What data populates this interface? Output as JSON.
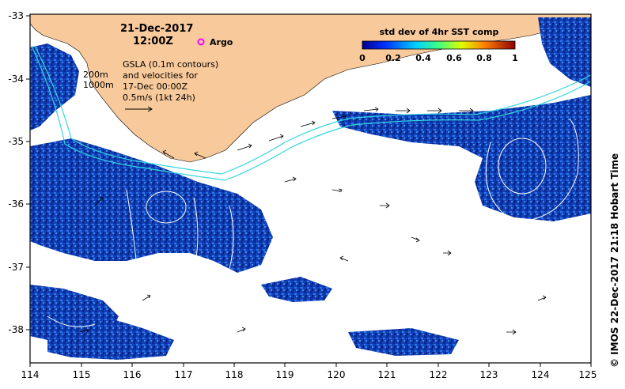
{
  "map": {
    "date_title": "21-Dec-2017",
    "time_title": "12:00Z",
    "argo_label": "Argo",
    "isobath_labels": [
      "200m",
      "1000m"
    ],
    "gsla_lines": [
      "GSLA (0.1m contours)",
      "and velocities for",
      "17-Dec 00:00Z",
      "0.5m/s (1kt 24h)"
    ],
    "colorbar": {
      "title": "std dev of 4hr SST comp",
      "tick_labels": [
        "0",
        "0.2",
        "0.4",
        "0.6",
        "0.8",
        "1"
      ],
      "range": [
        0,
        1
      ]
    },
    "credit": "© IMOS 22-Dec-2017 21:18 Hobart Time",
    "lon_ticks": [
      "114",
      "115",
      "116",
      "117",
      "118",
      "119",
      "120",
      "121",
      "122",
      "123",
      "124",
      "125"
    ],
    "lat_ticks": [
      "-33",
      "-34",
      "-35",
      "-36",
      "-37",
      "-38"
    ],
    "lon_range": [
      114,
      125
    ],
    "lat_range": [
      -38.5,
      -33
    ],
    "colors": {
      "land": "#f8c99a",
      "sst_low": "#0b2fa8",
      "sst_mid": "#1e6fe0",
      "contour": "#ffffff",
      "isobath": "#33d6e0",
      "argo": "#ff00ff"
    }
  }
}
